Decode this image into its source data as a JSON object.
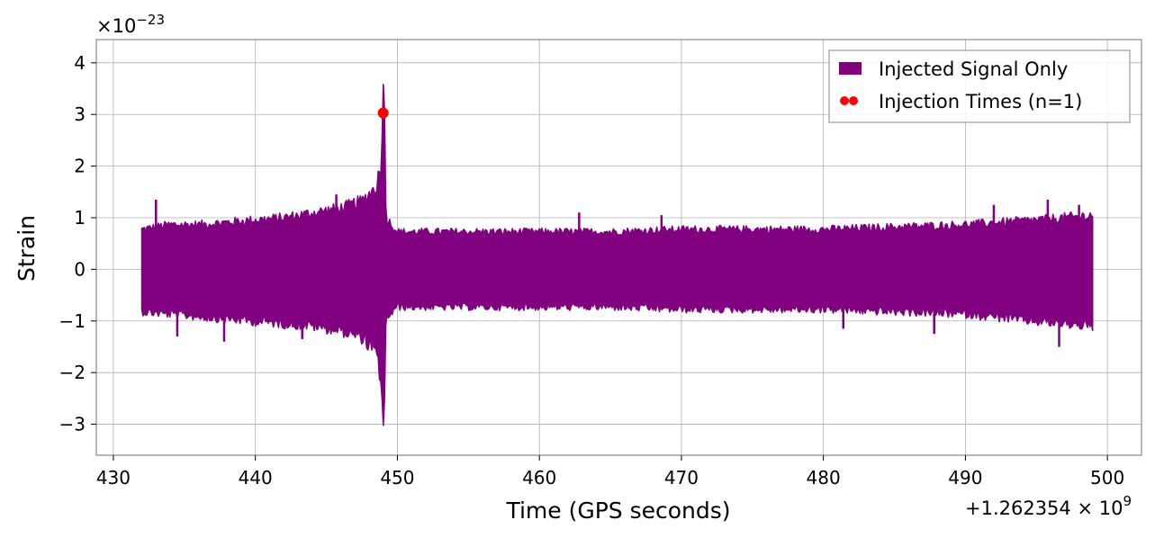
{
  "chart_data": {
    "type": "line",
    "xlabel": "Time (GPS seconds)",
    "ylabel": "Strain",
    "x_offset_label": "+1.262354 × 10",
    "x_offset_exponent": "9",
    "y_scale_label": "×10",
    "y_scale_exponent": "−23",
    "xlim": [
      428.8,
      502.4
    ],
    "ylim": [
      -3.6,
      4.45
    ],
    "x_ticks": [
      430,
      440,
      450,
      460,
      470,
      480,
      490,
      500
    ],
    "x_tick_labels": [
      "430",
      "440",
      "450",
      "460",
      "470",
      "480",
      "490",
      "500"
    ],
    "y_ticks": [
      -3,
      -2,
      -1,
      0,
      1,
      2,
      3,
      4
    ],
    "y_tick_labels": [
      "−3",
      "−2",
      "−1",
      "0",
      "1",
      "2",
      "3",
      "4"
    ],
    "grid": true,
    "legend_position": "top-right",
    "series": [
      {
        "name": "Injected Signal Only",
        "color": "#800080",
        "kind": "band",
        "x": [
          432.0,
          434.0,
          436.0,
          438.0,
          440.0,
          442.0,
          444.0,
          446.0,
          447.5,
          448.5,
          448.9,
          449.05,
          449.2,
          450.0,
          455.0,
          460.0,
          465.0,
          470.0,
          475.0,
          480.0,
          485.0,
          490.0,
          495.0,
          499.0
        ],
        "upper": [
          0.85,
          0.95,
          0.95,
          1.0,
          1.05,
          1.1,
          1.2,
          1.3,
          1.45,
          1.75,
          2.3,
          4.05,
          1.1,
          0.8,
          0.8,
          0.8,
          0.8,
          0.85,
          0.85,
          0.85,
          0.9,
          0.95,
          1.05,
          1.15
        ],
        "lower": [
          -0.9,
          -0.95,
          -1.0,
          -1.05,
          -1.1,
          -1.15,
          -1.2,
          -1.3,
          -1.45,
          -1.8,
          -2.4,
          -3.25,
          -1.05,
          -0.8,
          -0.8,
          -0.8,
          -0.8,
          -0.85,
          -0.85,
          -0.85,
          -0.9,
          -0.95,
          -1.1,
          -1.2
        ],
        "spikes": [
          {
            "x": 433.0,
            "y": 1.35
          },
          {
            "x": 434.5,
            "y": -1.3
          },
          {
            "x": 437.8,
            "y": -1.4
          },
          {
            "x": 443.3,
            "y": -1.35
          },
          {
            "x": 445.7,
            "y": 1.45
          },
          {
            "x": 462.8,
            "y": 1.1
          },
          {
            "x": 468.6,
            "y": 1.05
          },
          {
            "x": 481.4,
            "y": -1.15
          },
          {
            "x": 487.8,
            "y": -1.25
          },
          {
            "x": 492.0,
            "y": 1.25
          },
          {
            "x": 495.8,
            "y": 1.35
          },
          {
            "x": 496.6,
            "y": -1.5
          },
          {
            "x": 498.0,
            "y": 1.25
          }
        ]
      },
      {
        "name": "Injection Times (n=1)",
        "color": "#ff0000",
        "kind": "scatter",
        "x": [
          449.0
        ],
        "y": [
          3.03
        ]
      }
    ]
  }
}
